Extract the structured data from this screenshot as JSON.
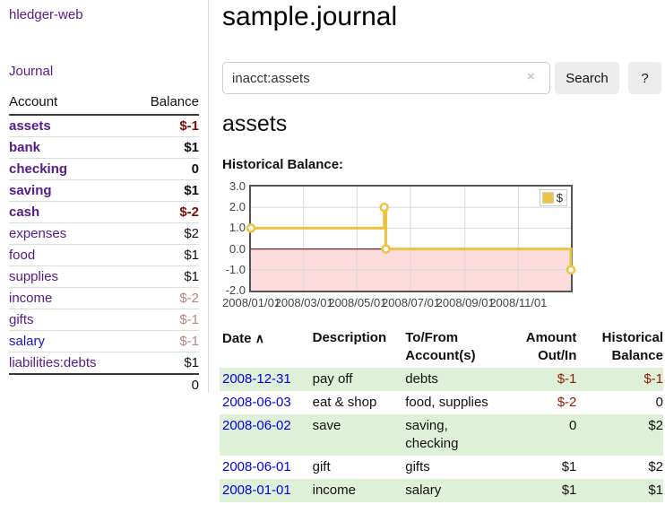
{
  "app": {
    "title": "hledger-web"
  },
  "sidebar": {
    "journal_link": "Journal",
    "accounts": {
      "header_account": "Account",
      "header_balance": "Balance",
      "rows": [
        {
          "name": "assets",
          "balance": "$-1",
          "indent": 1,
          "bold": true,
          "neg": "strong"
        },
        {
          "name": "bank",
          "balance": "$1",
          "indent": 2,
          "bold": true,
          "neg": "none"
        },
        {
          "name": "checking",
          "balance": "0",
          "indent": 3,
          "bold": true,
          "neg": "none"
        },
        {
          "name": "saving",
          "balance": "$1",
          "indent": 3,
          "bold": true,
          "neg": "none"
        },
        {
          "name": "cash",
          "balance": "$-2",
          "indent": 2,
          "bold": true,
          "neg": "strong"
        },
        {
          "name": "expenses",
          "balance": "$2",
          "indent": 1,
          "bold": false,
          "neg": "none"
        },
        {
          "name": "food",
          "balance": "$1",
          "indent": 2,
          "bold": false,
          "neg": "none"
        },
        {
          "name": "supplies",
          "balance": "$1",
          "indent": 2,
          "bold": false,
          "neg": "none"
        },
        {
          "name": "income",
          "balance": "$-2",
          "indent": 1,
          "bold": false,
          "neg": "weak"
        },
        {
          "name": "gifts",
          "balance": "$-1",
          "indent": 2,
          "bold": false,
          "neg": "weak"
        },
        {
          "name": "salary",
          "balance": "$-1",
          "indent": 2,
          "bold": false,
          "neg": "weak",
          "link_style": "unvisited"
        },
        {
          "name": "liabilities:debts",
          "balance": "$1",
          "indent": 1,
          "bold": false,
          "neg": "none"
        }
      ],
      "total": "0"
    }
  },
  "main": {
    "title": "sample.journal",
    "search": {
      "value": "inacct:assets",
      "clear_icon": "×",
      "button_label": "Search",
      "help_label": "?"
    },
    "account_heading": "assets",
    "chart_heading": "Historical Balance:"
  },
  "chart_data": {
    "type": "line",
    "step": true,
    "title": "Historical Balance",
    "series": [
      {
        "name": "$",
        "color": "#EDC240",
        "points": [
          [
            "2008-01-01",
            1
          ],
          [
            "2008-06-01",
            2
          ],
          [
            "2008-06-03",
            0
          ],
          [
            "2008-12-31",
            -1
          ]
        ]
      }
    ],
    "x_range": [
      "2008-01-01",
      "2008-12-31"
    ],
    "ylim": [
      -2,
      3
    ],
    "y_ticks": [
      "3.0",
      "2.0",
      "1.0",
      "0.0",
      "-1.0",
      "-2.0"
    ],
    "x_ticks": [
      "2008/01/01",
      "2008/03/01",
      "2008/05/01",
      "2008/07/01",
      "2008/09/01",
      "2008/11/01"
    ],
    "grid": true,
    "legend_position": "top-right",
    "legend_label": "$",
    "negative_region_color": "#FBDBDB",
    "zero_line_color": "#8B1D1D",
    "grid_color": "#d8d8d8",
    "border_color": "#545454"
  },
  "transactions": {
    "sort_icon": "∧",
    "headers": {
      "date": "Date",
      "description": "Description",
      "account": "To/From Account(s)",
      "amount": "Amount Out/In",
      "balance": "Historical Balance"
    },
    "rows": [
      {
        "date": "2008-12-31",
        "description": "pay off",
        "accounts": "debts",
        "amount": "$-1",
        "amount_neg": true,
        "balance": "$-1",
        "balance_neg": true,
        "stripe": true
      },
      {
        "date": "2008-06-03",
        "description": "eat & shop",
        "accounts": "food, supplies",
        "amount": "$-2",
        "amount_neg": true,
        "balance": "0",
        "balance_neg": false,
        "stripe": false
      },
      {
        "date": "2008-06-02",
        "description": "save",
        "accounts": "saving, checking",
        "amount": "0",
        "amount_neg": false,
        "balance": "$2",
        "balance_neg": false,
        "stripe": true
      },
      {
        "date": "2008-06-01",
        "description": "gift",
        "accounts": "gifts",
        "amount": "$1",
        "amount_neg": false,
        "balance": "$2",
        "balance_neg": false,
        "stripe": false
      },
      {
        "date": "2008-01-01",
        "description": "income",
        "accounts": "salary",
        "amount": "$1",
        "amount_neg": false,
        "balance": "$1",
        "balance_neg": false,
        "stripe": true
      }
    ]
  },
  "colors": {
    "link_purple": "#551A8B",
    "link_blue": "#0000EE",
    "negative_strong": "#7F0C00",
    "negative_weak": "#BE7E7E",
    "row_stripe_green": "#dff0d8",
    "button_bg": "#ececec",
    "series_gold": "#EDC240"
  }
}
